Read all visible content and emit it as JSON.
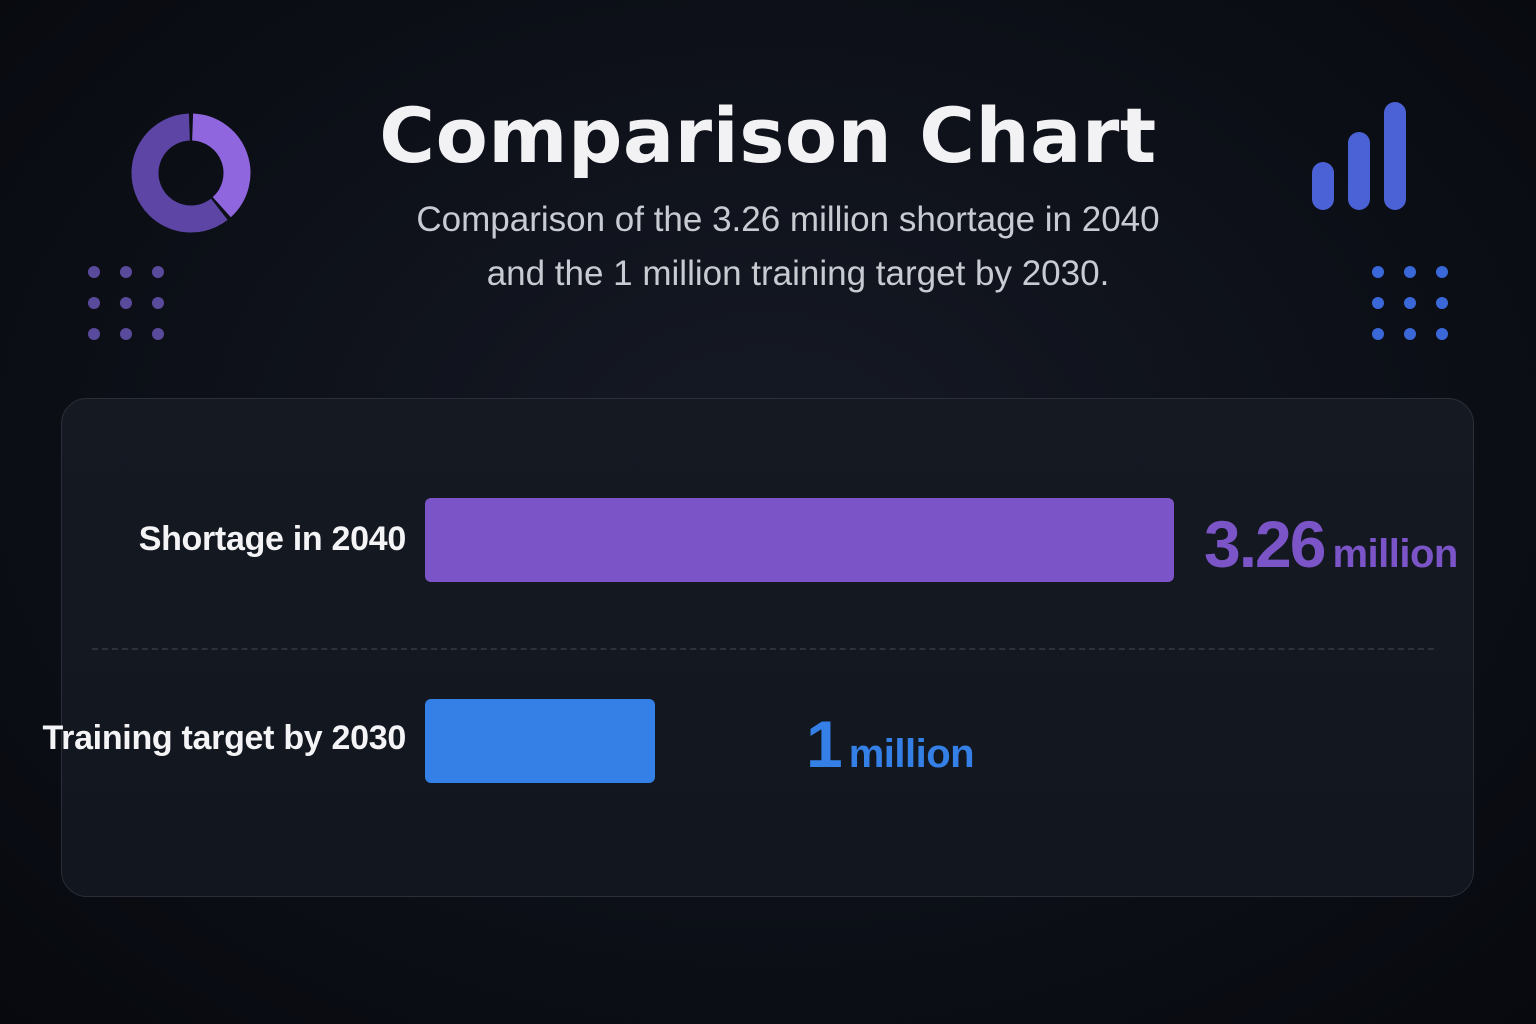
{
  "title": "Comparison Chart",
  "subtitle_line1": "Comparison of the 3.26 million shortage in 2040",
  "subtitle_line2": "and the 1 million training target by 2030.",
  "colors": {
    "shortage": "#7b55c7",
    "training": "#3580e6",
    "donut_light": "#8f66de",
    "donut_dark": "#5d45a6",
    "bars_icon": "#4a62d6",
    "dots_left": "#5a4a9c",
    "dots_right": "#3a68d8"
  },
  "icons": {
    "left": "donut-chart-icon",
    "right": "bar-chart-icon"
  },
  "chart_data": {
    "type": "bar",
    "orientation": "horizontal",
    "categories": [
      "Shortage in 2040",
      "Training target by 2030"
    ],
    "values": [
      3.26,
      1
    ],
    "value_labels": [
      {
        "number": "3.26",
        "unit": "million"
      },
      {
        "number": "1",
        "unit": "million"
      }
    ],
    "unit": "million",
    "title": "Comparison Chart",
    "xlim": [
      0,
      3.26
    ],
    "grid": false
  }
}
